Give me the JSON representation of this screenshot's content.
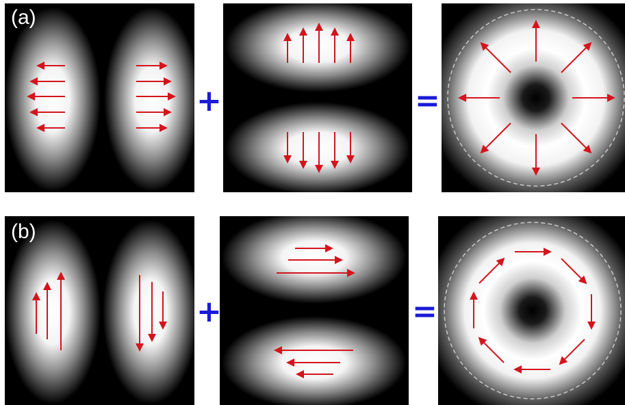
{
  "rows": [
    {
      "label": "(a)",
      "plus": "+",
      "equals": "=",
      "polarization": "radial"
    },
    {
      "label": "(b)",
      "plus": "+",
      "equals": "=",
      "polarization": "azimuthal"
    }
  ],
  "colors": {
    "arrow": "#d4141c",
    "operator": "#1a1ad8",
    "background": "#000000",
    "ring_guide": "#c8c8c8"
  }
}
